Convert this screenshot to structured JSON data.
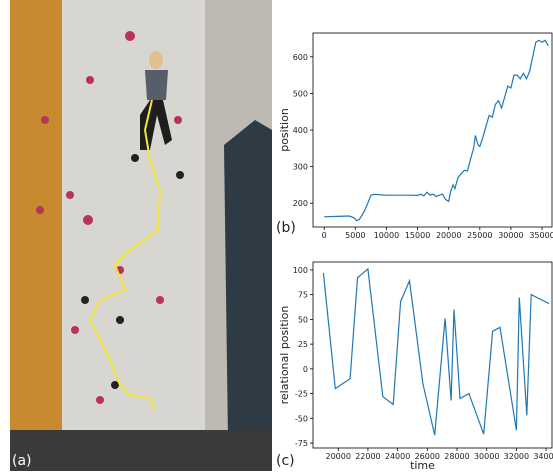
{
  "photo": {
    "label": "(a)"
  },
  "chart_data": [
    {
      "type": "line",
      "panel_label": "(b)",
      "ylabel": "position",
      "xlim": [
        -1800,
        36600
      ],
      "xticks": [
        0,
        5000,
        10000,
        15000,
        20000,
        25000,
        30000,
        35000
      ],
      "ylim": [
        135,
        665
      ],
      "yticks": [
        200,
        300,
        400,
        500,
        600
      ],
      "series": [
        {
          "color": "#1f77b4",
          "x": [
            0,
            2000,
            4000,
            4800,
            5200,
            5600,
            6000,
            6500,
            7000,
            7500,
            8000,
            10000,
            12000,
            14000,
            15000,
            15500,
            16000,
            16500,
            17000,
            17500,
            18000,
            18500,
            19000,
            19500,
            20000,
            20300,
            20700,
            21000,
            21500,
            22000,
            22500,
            23000,
            23500,
            24000,
            24300,
            24700,
            25000,
            25500,
            26000,
            26500,
            27000,
            27500,
            28000,
            28500,
            29000,
            29500,
            30000,
            30500,
            31000,
            31500,
            32000,
            32500,
            33000,
            33500,
            34000,
            34500,
            35000,
            35500,
            36000
          ],
          "values": [
            163,
            164,
            165,
            160,
            152,
            155,
            165,
            180,
            200,
            222,
            224,
            222,
            222,
            222,
            221,
            225,
            220,
            230,
            222,
            225,
            218,
            222,
            225,
            210,
            205,
            230,
            250,
            240,
            270,
            280,
            290,
            288,
            320,
            350,
            385,
            360,
            355,
            380,
            410,
            440,
            435,
            470,
            480,
            460,
            490,
            520,
            515,
            550,
            550,
            540,
            555,
            540,
            560,
            600,
            640,
            645,
            640,
            645,
            630
          ]
        }
      ]
    },
    {
      "type": "line",
      "panel_label": "(c)",
      "xlabel": "time",
      "ylabel": "relational position",
      "xlim": [
        18300,
        34400
      ],
      "xticks": [
        20000,
        22000,
        24000,
        26000,
        28000,
        30000,
        32000,
        34000
      ],
      "ylim": [
        -80,
        108
      ],
      "yticks": [
        -75,
        -50,
        -25,
        0,
        25,
        50,
        75,
        100
      ],
      "series": [
        {
          "color": "#1f77b4",
          "x": [
            19000,
            19800,
            20800,
            21300,
            22000,
            23000,
            23700,
            24200,
            24800,
            25700,
            26500,
            27200,
            27600,
            27800,
            28200,
            28800,
            29800,
            30400,
            30900,
            32000,
            32200,
            32700,
            33000,
            34200
          ],
          "values": [
            97,
            -20,
            -10,
            92,
            101,
            -28,
            -36,
            68,
            89,
            -15,
            -67,
            51,
            -32,
            60,
            -30,
            -25,
            -66,
            38,
            42,
            -62,
            72,
            -47,
            75,
            66
          ]
        }
      ]
    }
  ]
}
